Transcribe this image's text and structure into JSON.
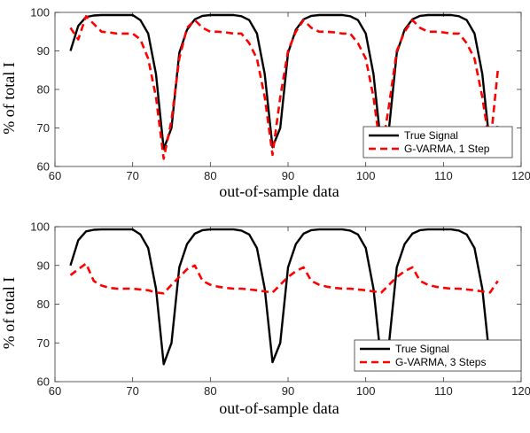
{
  "chart_data": [
    {
      "type": "line",
      "xlabel": "out-of-sample data",
      "ylabel": "% of total I",
      "xlim": [
        60,
        120
      ],
      "ylim": [
        60,
        100
      ],
      "xticks": [
        60,
        70,
        80,
        90,
        100,
        110,
        120
      ],
      "yticks": [
        60,
        70,
        80,
        90,
        100
      ],
      "grid": false,
      "legend_position": "bottom-right",
      "series": [
        {
          "name": "True Signal",
          "color": "#000000",
          "style": "solid",
          "x": [
            62,
            63,
            64,
            65,
            66,
            67,
            68,
            69,
            70,
            71,
            72,
            73,
            74,
            75,
            76,
            77,
            78,
            79,
            80,
            81,
            82,
            83,
            84,
            85,
            86,
            87,
            88,
            89,
            90,
            91,
            92,
            93,
            94,
            95,
            96,
            97,
            98,
            99,
            100,
            101,
            102,
            103,
            104,
            105,
            106,
            107,
            108,
            109,
            110,
            111,
            112,
            113,
            114,
            115,
            116,
            117
          ],
          "y": [
            90,
            96.5,
            98.8,
            99.2,
            99.3,
            99.3,
            99.3,
            99.3,
            99.3,
            98,
            94.5,
            84,
            64.5,
            70,
            89.5,
            95.5,
            98.2,
            99.1,
            99.3,
            99.3,
            99.3,
            99.3,
            99,
            98,
            94.5,
            84,
            65,
            70,
            89.5,
            95.5,
            98.2,
            99.1,
            99.3,
            99.3,
            99.3,
            99.3,
            99,
            98,
            94.5,
            84,
            65,
            70,
            89.5,
            95.5,
            98.2,
            99.1,
            99.3,
            99.3,
            99.3,
            99.3,
            99,
            98,
            94.5,
            84,
            65,
            70.5
          ]
        },
        {
          "name": "G-VARMA, 1 Step",
          "color": "#ff0000",
          "style": "dashed",
          "x": [
            62,
            63,
            64,
            65,
            66,
            67,
            68,
            69,
            70,
            71,
            72,
            73,
            74,
            75,
            76,
            77,
            78,
            79,
            80,
            81,
            82,
            83,
            84,
            85,
            86,
            87,
            88,
            89,
            90,
            91,
            92,
            93,
            94,
            95,
            96,
            97,
            98,
            99,
            100,
            101,
            102,
            103,
            104,
            105,
            106,
            107,
            108,
            109,
            110,
            111,
            112,
            113,
            114,
            115,
            116,
            117
          ],
          "y": [
            96,
            93,
            99,
            97,
            95,
            94.8,
            94.5,
            94.5,
            94.5,
            93,
            88,
            78,
            62,
            72,
            88,
            96,
            98,
            96,
            95,
            95,
            94.8,
            94.5,
            94.5,
            92,
            88,
            78,
            63,
            78,
            90,
            95,
            98,
            96,
            95,
            95,
            94.8,
            94.5,
            94.5,
            92,
            88,
            78,
            63,
            76,
            90,
            95,
            98,
            96,
            95,
            95,
            94.8,
            94.5,
            94.5,
            92,
            88,
            78,
            65,
            85
          ]
        }
      ]
    },
    {
      "type": "line",
      "xlabel": "out-of-sample data",
      "ylabel": "% of total I",
      "xlim": [
        60,
        120
      ],
      "ylim": [
        60,
        100
      ],
      "xticks": [
        60,
        70,
        80,
        90,
        100,
        110,
        120
      ],
      "yticks": [
        60,
        70,
        80,
        90,
        100
      ],
      "grid": false,
      "legend_position": "bottom-right",
      "series": [
        {
          "name": "True Signal",
          "color": "#000000",
          "style": "solid",
          "x": [
            62,
            63,
            64,
            65,
            66,
            67,
            68,
            69,
            70,
            71,
            72,
            73,
            74,
            75,
            76,
            77,
            78,
            79,
            80,
            81,
            82,
            83,
            84,
            85,
            86,
            87,
            88,
            89,
            90,
            91,
            92,
            93,
            94,
            95,
            96,
            97,
            98,
            99,
            100,
            101,
            102,
            103,
            104,
            105,
            106,
            107,
            108,
            109,
            110,
            111,
            112,
            113,
            114,
            115,
            116,
            117
          ],
          "y": [
            90,
            96.5,
            98.8,
            99.2,
            99.3,
            99.3,
            99.3,
            99.3,
            99.3,
            98,
            94.5,
            84,
            64.5,
            70,
            89.5,
            95.5,
            98.2,
            99.1,
            99.3,
            99.3,
            99.3,
            99.3,
            99,
            98,
            94.5,
            84,
            65,
            70,
            89.5,
            95.5,
            98.2,
            99.1,
            99.3,
            99.3,
            99.3,
            99.3,
            99,
            98,
            94.5,
            84,
            65,
            70,
            89.5,
            95.5,
            98.2,
            99.1,
            99.3,
            99.3,
            99.3,
            99.3,
            99,
            98,
            94.5,
            84,
            65,
            70.5
          ]
        },
        {
          "name": "G-VARMA, 3 Steps",
          "color": "#ff0000",
          "style": "dashed",
          "x": [
            62,
            63,
            64,
            65,
            66,
            67,
            68,
            69,
            70,
            71,
            72,
            73,
            74,
            75,
            76,
            77,
            78,
            79,
            80,
            81,
            82,
            83,
            84,
            85,
            86,
            87,
            88,
            89,
            90,
            91,
            92,
            93,
            94,
            95,
            96,
            97,
            98,
            99,
            100,
            101,
            102,
            103,
            104,
            105,
            106,
            107,
            108,
            109,
            110,
            111,
            112,
            113,
            114,
            115,
            116,
            117
          ],
          "y": [
            87.5,
            89,
            90.5,
            86,
            84.8,
            84.2,
            84,
            84,
            84,
            83.8,
            83.6,
            83,
            82.8,
            85,
            87,
            89,
            90,
            86,
            85,
            84.5,
            84.2,
            84,
            84,
            83.8,
            83.6,
            83.3,
            83,
            85,
            87,
            88.5,
            89.5,
            86,
            85,
            84.5,
            84.2,
            84,
            84,
            83.8,
            83.6,
            83.3,
            83,
            85,
            87,
            88.5,
            89.5,
            86,
            85,
            84.5,
            84.2,
            84,
            84,
            83.8,
            83.6,
            83.3,
            83,
            86
          ]
        }
      ]
    }
  ]
}
